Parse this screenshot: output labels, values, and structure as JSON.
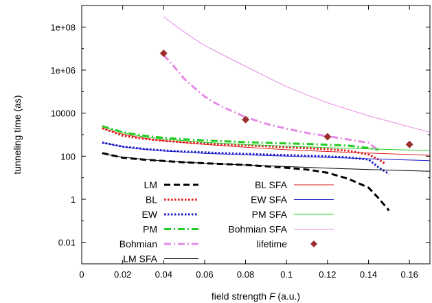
{
  "chart_data": {
    "type": "line",
    "xlabel_prefix": "field strength ",
    "xlabel_var": "F",
    "xlabel_suffix": " (a.u.)",
    "ylabel": "tunneling time (as)",
    "xlim": [
      0,
      0.17
    ],
    "ylim": [
      0.001,
      1000000000
    ],
    "yscale": "log",
    "xticks": [
      {
        "v": 0,
        "label": "0"
      },
      {
        "v": 0.02,
        "label": "0.02"
      },
      {
        "v": 0.04,
        "label": "0.04"
      },
      {
        "v": 0.06,
        "label": "0.06"
      },
      {
        "v": 0.08,
        "label": "0.08"
      },
      {
        "v": 0.1,
        "label": "0.1"
      },
      {
        "v": 0.12,
        "label": "0.12"
      },
      {
        "v": 0.14,
        "label": "0.14"
      },
      {
        "v": 0.16,
        "label": "0.16"
      }
    ],
    "yticks": [
      {
        "v": 0.01,
        "label": "0.01"
      },
      {
        "v": 1,
        "label": "1"
      },
      {
        "v": 100,
        "label": "100"
      },
      {
        "v": 10000,
        "label": "10000"
      },
      {
        "v": 1000000,
        "label": "1e+06"
      },
      {
        "v": 100000000,
        "label": "1e+08"
      }
    ],
    "grid": false,
    "legend_placement": "bottom",
    "series": [
      {
        "name": "LM",
        "color": "#000000",
        "style": "dash",
        "width": 3,
        "x": [
          0.01,
          0.02,
          0.03,
          0.04,
          0.05,
          0.06,
          0.07,
          0.08,
          0.09,
          0.1,
          0.11,
          0.12,
          0.13,
          0.14,
          0.145,
          0.15
        ],
        "y": [
          140,
          85,
          70,
          60,
          52,
          47,
          43,
          39,
          34,
          29,
          24,
          17,
          9,
          3.5,
          1.1,
          0.3
        ]
      },
      {
        "name": "BL",
        "color": "#e11a1a",
        "style": "dot",
        "width": 3,
        "x": [
          0.01,
          0.02,
          0.03,
          0.04,
          0.05,
          0.06,
          0.07,
          0.08,
          0.09,
          0.1,
          0.11,
          0.12,
          0.13,
          0.14,
          0.145,
          0.148
        ],
        "y": [
          2000,
          900,
          650,
          520,
          440,
          390,
          350,
          320,
          290,
          260,
          235,
          210,
          180,
          120,
          70,
          45
        ]
      },
      {
        "name": "EW",
        "color": "#1a1acc",
        "style": "dot",
        "width": 3,
        "x": [
          0.01,
          0.02,
          0.03,
          0.04,
          0.05,
          0.06,
          0.07,
          0.08,
          0.09,
          0.1,
          0.11,
          0.12,
          0.13,
          0.14,
          0.145,
          0.15
        ],
        "y": [
          430,
          280,
          220,
          185,
          165,
          150,
          138,
          128,
          120,
          112,
          105,
          97,
          88,
          70,
          30,
          15
        ]
      },
      {
        "name": "PM",
        "color": "#22cc22",
        "style": "dashdot",
        "width": 3,
        "x": [
          0.01,
          0.02,
          0.03,
          0.04,
          0.05,
          0.06,
          0.07,
          0.08,
          0.09,
          0.1,
          0.11,
          0.12,
          0.13,
          0.14,
          0.145
        ],
        "y": [
          2500,
          1300,
          900,
          720,
          610,
          540,
          490,
          450,
          420,
          390,
          370,
          340,
          310,
          240,
          200
        ]
      },
      {
        "name": "Bohmian",
        "color": "#e58ae5",
        "style": "dashdot",
        "width": 3,
        "x": [
          0.04,
          0.045,
          0.05,
          0.055,
          0.06,
          0.065,
          0.07,
          0.08,
          0.09,
          0.1,
          0.11,
          0.12,
          0.13,
          0.14,
          0.145
        ],
        "y": [
          5000000,
          1500000,
          400000,
          150000,
          60000,
          30000,
          17000,
          6500,
          3200,
          1900,
          1200,
          850,
          600,
          420,
          180
        ]
      },
      {
        "name": "LM SFA",
        "color": "#000000",
        "style": "solid",
        "width": 1,
        "x": [
          0.01,
          0.02,
          0.03,
          0.04,
          0.06,
          0.08,
          0.1,
          0.12,
          0.14,
          0.17
        ],
        "y": [
          130,
          90,
          72,
          60,
          47,
          39,
          33,
          28,
          24,
          20
        ]
      },
      {
        "name": "BL SFA",
        "color": "#e11a1a",
        "style": "solid",
        "width": 1,
        "x": [
          0.01,
          0.02,
          0.03,
          0.04,
          0.06,
          0.08,
          0.1,
          0.12,
          0.14,
          0.17
        ],
        "y": [
          2000,
          1050,
          700,
          520,
          350,
          260,
          200,
          165,
          140,
          110
        ]
      },
      {
        "name": "EW SFA",
        "color": "#1a1acc",
        "style": "solid",
        "width": 1,
        "x": [
          0.01,
          0.02,
          0.03,
          0.04,
          0.06,
          0.08,
          0.1,
          0.12,
          0.14,
          0.17
        ],
        "y": [
          430,
          270,
          210,
          175,
          135,
          115,
          100,
          88,
          76,
          62
        ]
      },
      {
        "name": "PM SFA",
        "color": "#22cc22",
        "style": "solid",
        "width": 1,
        "x": [
          0.01,
          0.02,
          0.03,
          0.04,
          0.06,
          0.08,
          0.1,
          0.12,
          0.14,
          0.17
        ],
        "y": [
          2400,
          1200,
          800,
          620,
          440,
          350,
          290,
          250,
          220,
          180
        ]
      },
      {
        "name": "Bohmian SFA",
        "color": "#e58ae5",
        "style": "solid",
        "width": 1,
        "x": [
          0.04,
          0.045,
          0.05,
          0.055,
          0.06,
          0.07,
          0.08,
          0.09,
          0.1,
          0.11,
          0.12,
          0.13,
          0.14,
          0.15,
          0.16,
          0.17
        ],
        "y": [
          300000000,
          130000000,
          60000000,
          28000000,
          14000000,
          4500000,
          1500000,
          500000,
          170000,
          70000,
          30000,
          15000,
          7500,
          4200,
          2300,
          1300
        ]
      },
      {
        "name": "lifetime",
        "color": "#9b2d2d",
        "style": "marker",
        "width": 0,
        "x": [
          0.04,
          0.08,
          0.12,
          0.16
        ],
        "y": [
          6000000,
          5000,
          800,
          350
        ]
      }
    ]
  }
}
